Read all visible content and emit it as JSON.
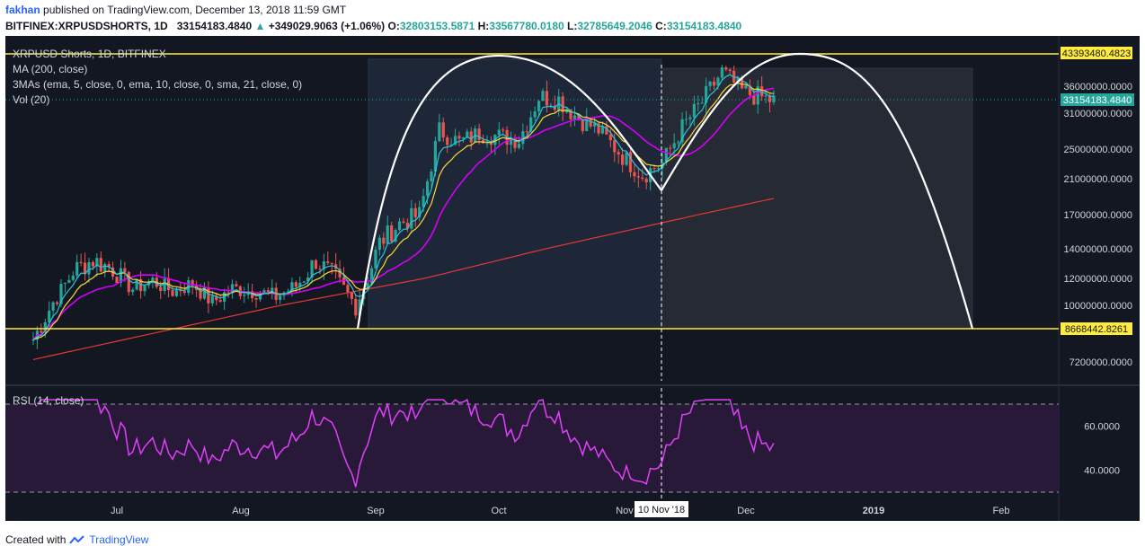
{
  "header": {
    "user": "fakhan",
    "published": "published on TradingView.com, December 13, 2018 11:59 GMT",
    "symbol": "BITFINEX:XRPUSDSHORTS, 1D",
    "last": "33154183.4840",
    "change_arrow": "▲",
    "change": "+349029.9063 (+1.06%)",
    "o_label": "O:",
    "o": "32803153.5871",
    "h_label": "H:",
    "h": "33567780.0180",
    "l_label": "L:",
    "l": "32785649.2046",
    "c_label": "C:",
    "c": "33154183.4840"
  },
  "legend": {
    "title": "XRPUSD Shorts, 1D, BITFINEX",
    "ma": "MA (200, close)",
    "mas3": "3MAs (ema, 5, close, 0, ema, 10, close, 0, sma, 21, close, 0)",
    "vol": "Vol (20)"
  },
  "price_tags": {
    "top_line": "43393480.4823",
    "last_price": "33154183.4840",
    "bottom_line": "8668442.8261"
  },
  "rsi_label": "RSI (14, close)",
  "cursor_date": "10 Nov '18",
  "footer": {
    "created": "Created with",
    "brand": "TradingView"
  },
  "colors": {
    "up": "#26a69a",
    "down": "#ef5350",
    "ma200": "#e53935",
    "ema5": "#26c6da",
    "ema10": "#fdd835",
    "sma21": "#d500f9",
    "rsi": "#e040fb",
    "hline": "#ffeb3b",
    "pattern": "#ffffff",
    "bg": "#131722",
    "box": "#1e2433"
  },
  "chart_data": {
    "type": "candlestick",
    "ylabels": [
      "36000000.0000",
      "31000000.0000",
      "25000000.0000",
      "21000000.0000",
      "17000000.0000",
      "14000000.0000",
      "12000000.0000",
      "10000000.0000",
      "7200000.0000"
    ],
    "yvalues": [
      36000000,
      31000000,
      25000000,
      21000000,
      17000000,
      14000000,
      12000000,
      10000000,
      7200000
    ],
    "xlabels": [
      "Jul",
      "Aug",
      "Sep",
      "Oct",
      "Nov",
      "Dec",
      "2019",
      "Feb"
    ],
    "horizontal_lines": [
      43393480.4823,
      8668442.8261
    ],
    "last_price": 33154183.484,
    "rsi_labels": [
      "60.0000",
      "40.0000"
    ],
    "rsi_values": [
      60,
      40
    ],
    "close_series": [
      [
        "2018-06-10",
        8200000
      ],
      [
        "2018-06-15",
        10200000
      ],
      [
        "2018-06-20",
        12500000
      ],
      [
        "2018-06-25",
        13200000
      ],
      [
        "2018-06-30",
        12600000
      ],
      [
        "2018-07-05",
        11200000
      ],
      [
        "2018-07-10",
        11800000
      ],
      [
        "2018-07-15",
        11000000
      ],
      [
        "2018-07-20",
        11600000
      ],
      [
        "2018-07-25",
        10200000
      ],
      [
        "2018-07-30",
        11200000
      ],
      [
        "2018-08-05",
        11000000
      ],
      [
        "2018-08-10",
        10600000
      ],
      [
        "2018-08-15",
        11400000
      ],
      [
        "2018-08-20",
        13200000
      ],
      [
        "2018-08-25",
        12000000
      ],
      [
        "2018-08-30",
        10000000
      ],
      [
        "2018-09-05",
        14500000
      ],
      [
        "2018-09-10",
        16200000
      ],
      [
        "2018-09-15",
        17000000
      ],
      [
        "2018-09-20",
        28000000
      ],
      [
        "2018-09-25",
        26000000
      ],
      [
        "2018-09-30",
        27500000
      ],
      [
        "2018-10-05",
        27000000
      ],
      [
        "2018-10-10",
        26500000
      ],
      [
        "2018-10-15",
        34000000
      ],
      [
        "2018-10-20",
        33500000
      ],
      [
        "2018-10-25",
        30000000
      ],
      [
        "2018-10-30",
        28000000
      ],
      [
        "2018-11-05",
        24000000
      ],
      [
        "2018-11-10",
        21500000
      ],
      [
        "2018-11-15",
        23000000
      ],
      [
        "2018-11-20",
        28500000
      ],
      [
        "2018-11-25",
        33000000
      ],
      [
        "2018-11-30",
        39000000
      ],
      [
        "2018-12-05",
        35000000
      ],
      [
        "2018-12-10",
        33800000
      ],
      [
        "2018-12-13",
        33154183
      ]
    ]
  }
}
